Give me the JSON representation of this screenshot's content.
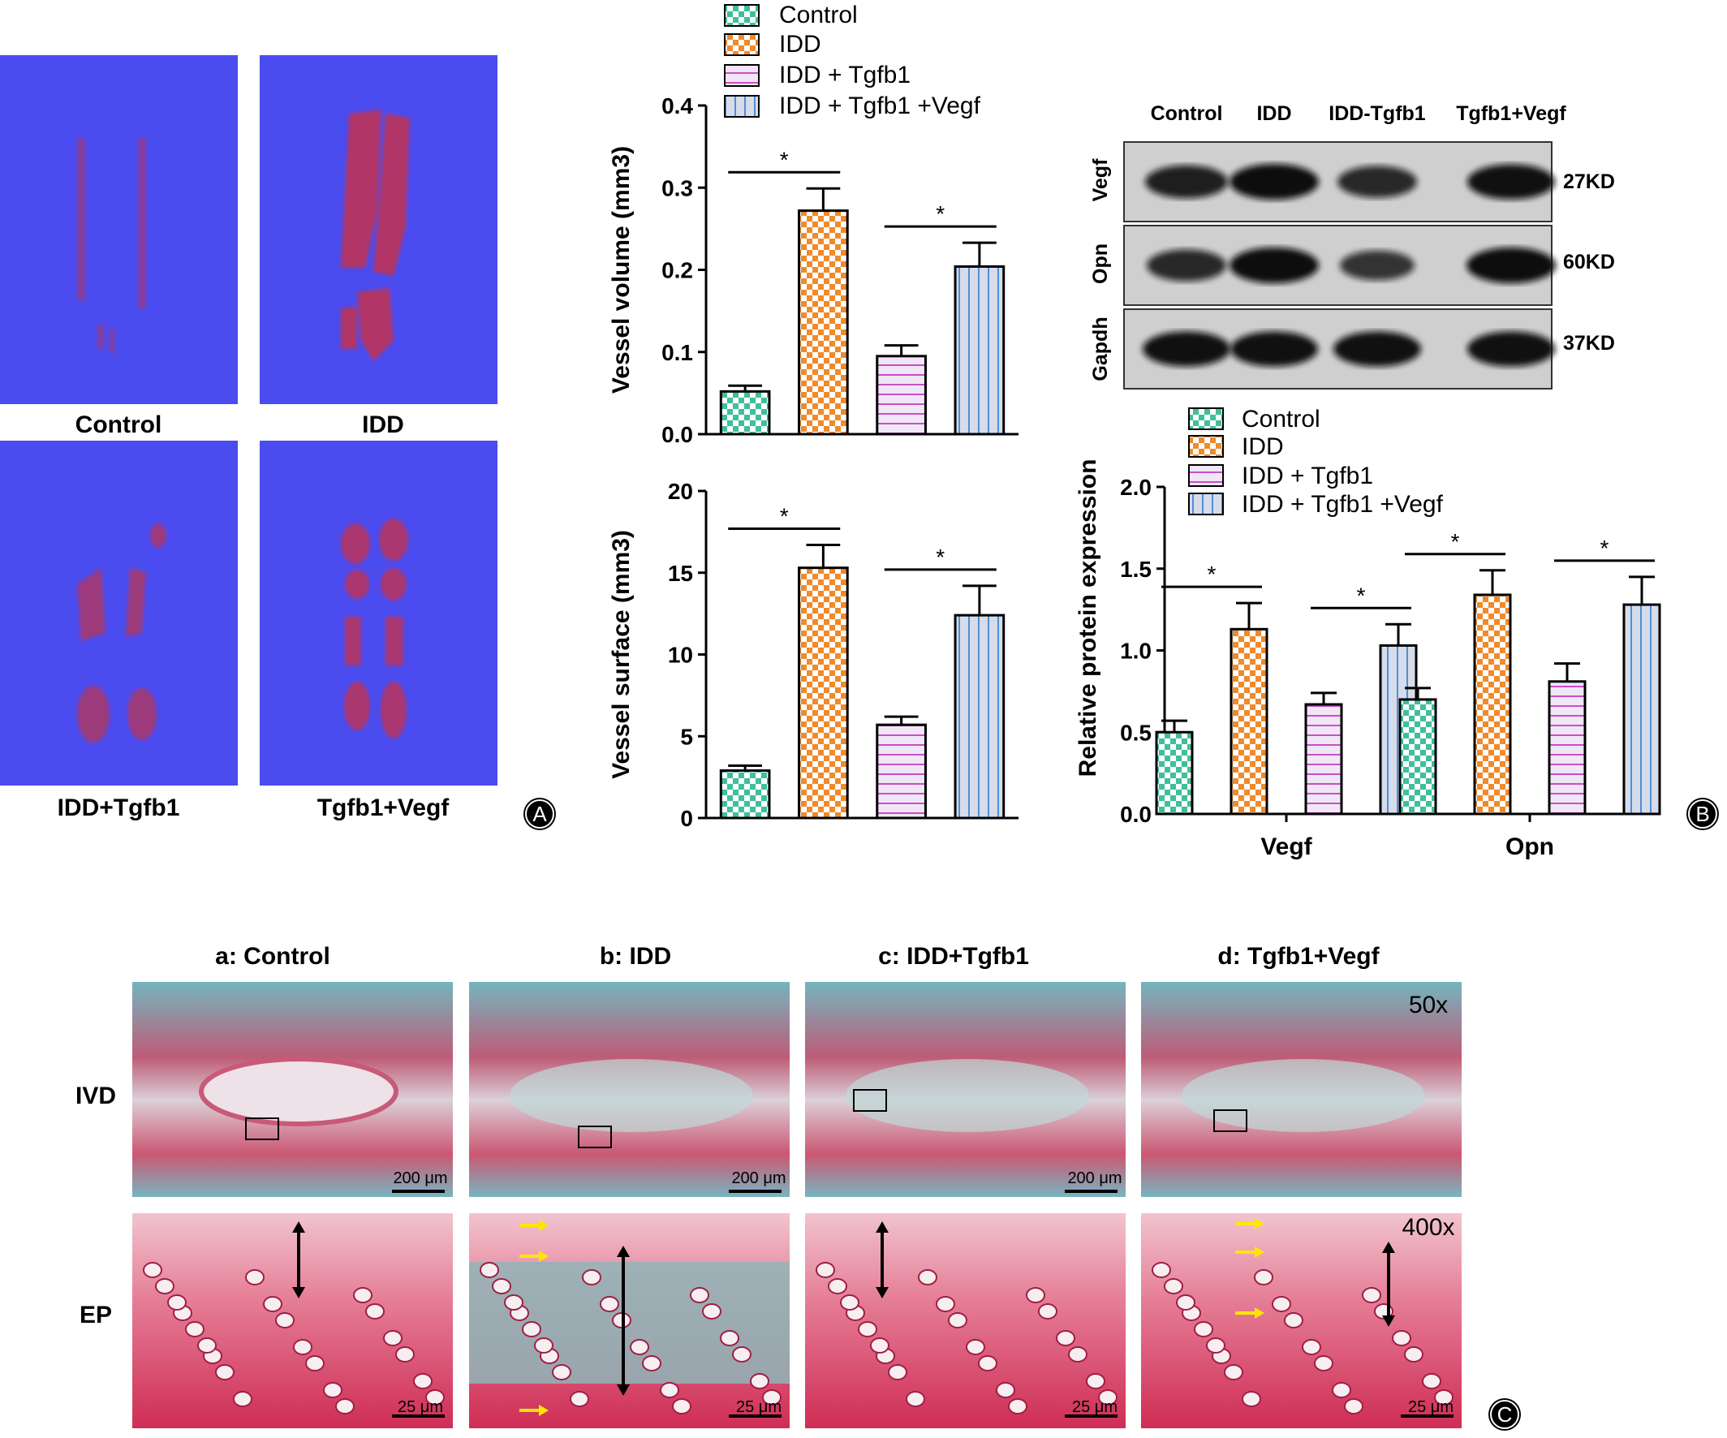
{
  "panelA": {
    "images": [
      {
        "label": "Control"
      },
      {
        "label": "IDD"
      },
      {
        "label": "IDD+Tgfb1"
      },
      {
        "label": "Tgfb1+Vegf"
      }
    ],
    "badge": "A",
    "background_color": "#4a4cf0",
    "vessel_color": "#c2304f"
  },
  "legend": {
    "items": [
      "Control",
      "IDD",
      "IDD + Tgfb1",
      "IDD + Tgfb1 +Vegf"
    ],
    "colors": [
      "#3fbf9a",
      "#f08a2a",
      "#d8b4e8",
      "#c8d4e8"
    ]
  },
  "chart_data": [
    {
      "type": "bar",
      "title": "",
      "ylabel": "Vessel volume (mm3)",
      "ylim": [
        0,
        0.4
      ],
      "yticks": [
        "0.0",
        "0.1",
        "0.2",
        "0.3",
        "0.4"
      ],
      "categories": [
        "Control",
        "IDD",
        "IDD + Tgfb1",
        "IDD + Tgfb1 +Vegf"
      ],
      "values": [
        0.052,
        0.272,
        0.095,
        0.204
      ],
      "errors": [
        0.007,
        0.027,
        0.013,
        0.029
      ],
      "significance": [
        {
          "pair": [
            0,
            1
          ],
          "label": "*"
        },
        {
          "pair": [
            2,
            3
          ],
          "label": "*"
        }
      ]
    },
    {
      "type": "bar",
      "title": "",
      "ylabel": "Vessel surface (mm3)",
      "ylim": [
        0,
        20
      ],
      "yticks": [
        "0",
        "5",
        "10",
        "15",
        "20"
      ],
      "categories": [
        "Control",
        "IDD",
        "IDD + Tgfb1",
        "IDD + Tgfb1 +Vegf"
      ],
      "values": [
        2.9,
        15.3,
        5.7,
        12.4
      ],
      "errors": [
        0.3,
        1.4,
        0.5,
        1.8
      ],
      "significance": [
        {
          "pair": [
            0,
            1
          ],
          "label": "*"
        },
        {
          "pair": [
            2,
            3
          ],
          "label": "*"
        }
      ]
    },
    {
      "type": "bar",
      "title": "",
      "ylabel": "Relative protein expression",
      "ylim": [
        0,
        2.0
      ],
      "yticks": [
        "0.0",
        "0.5",
        "1.0",
        "1.5",
        "2.0"
      ],
      "categories": [
        "Vegf",
        "Opn"
      ],
      "series": [
        {
          "name": "Control",
          "values": [
            0.5,
            0.7
          ],
          "errors": [
            0.07,
            0.07
          ]
        },
        {
          "name": "IDD",
          "values": [
            1.13,
            1.34
          ],
          "errors": [
            0.16,
            0.15
          ]
        },
        {
          "name": "IDD + Tgfb1",
          "values": [
            0.67,
            0.81
          ],
          "errors": [
            0.07,
            0.11
          ]
        },
        {
          "name": "IDD + Tgfb1 +Vegf",
          "values": [
            1.03,
            1.28
          ],
          "errors": [
            0.13,
            0.17
          ]
        }
      ],
      "significance": [
        {
          "category": 0,
          "pair": [
            0,
            1
          ],
          "label": "*"
        },
        {
          "category": 0,
          "pair": [
            2,
            3
          ],
          "label": "*"
        },
        {
          "category": 1,
          "pair": [
            0,
            1
          ],
          "label": "*"
        },
        {
          "category": 1,
          "pair": [
            2,
            3
          ],
          "label": "*"
        }
      ]
    }
  ],
  "western": {
    "lanes": [
      "Control",
      "IDD",
      "IDD-Tgfb1",
      "Tgfb1+Vegf"
    ],
    "rows": [
      {
        "protein": "Vegf",
        "size": "27KD",
        "intensity": [
          0.8,
          1.0,
          0.7,
          0.95
        ]
      },
      {
        "protein": "Opn",
        "size": "60KD",
        "intensity": [
          0.7,
          1.0,
          0.55,
          1.0
        ]
      },
      {
        "protein": "Gapdh",
        "size": "37KD",
        "intensity": [
          0.95,
          0.95,
          0.95,
          0.95
        ]
      }
    ],
    "badge": "B"
  },
  "panelC": {
    "columns": [
      "a: Control",
      "b: IDD",
      "c: IDD+Tgfb1",
      "d: Tgfb1+Vegf"
    ],
    "rows": [
      "IVD",
      "EP"
    ],
    "mag_top": "50x",
    "mag_bottom": "400x",
    "scale_top": "200 μm",
    "scale_bottom": "25 μm",
    "badge": "C"
  }
}
